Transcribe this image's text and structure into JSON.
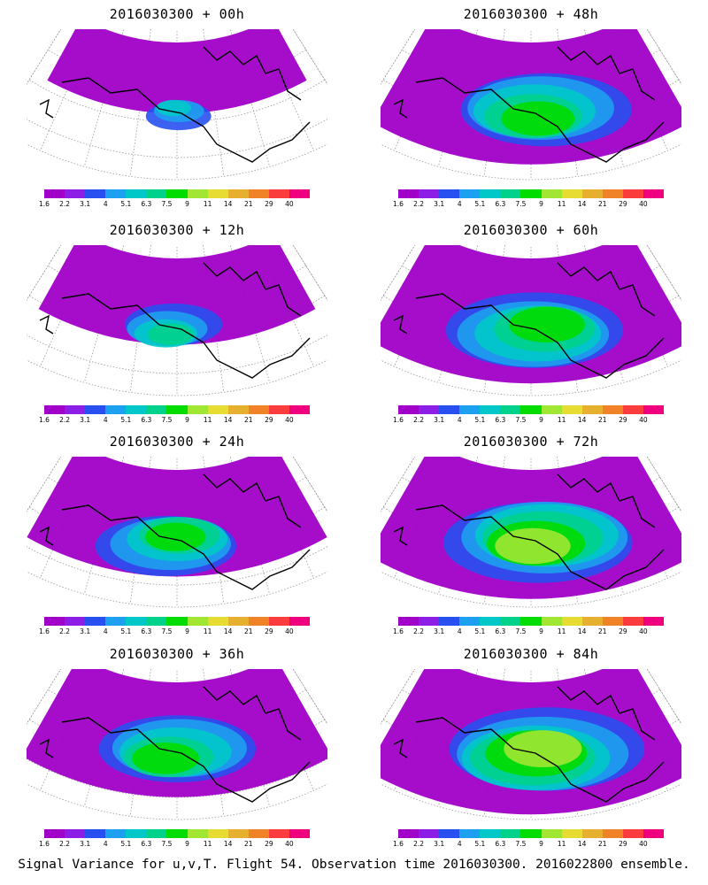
{
  "panels": [
    {
      "title": "2016030300 + 00h",
      "intensity": 0.35,
      "coverage": 0.35
    },
    {
      "title": "2016030300 + 48h",
      "intensity": 0.55,
      "coverage": 0.85
    },
    {
      "title": "2016030300 + 12h",
      "intensity": 0.45,
      "coverage": 0.5
    },
    {
      "title": "2016030300 + 60h",
      "intensity": 0.6,
      "coverage": 0.88
    },
    {
      "title": "2016030300 + 24h",
      "intensity": 0.5,
      "coverage": 0.7
    },
    {
      "title": "2016030300 + 72h",
      "intensity": 0.65,
      "coverage": 0.92
    },
    {
      "title": "2016030300 + 36h",
      "intensity": 0.55,
      "coverage": 0.78
    },
    {
      "title": "2016030300 + 84h",
      "intensity": 0.7,
      "coverage": 0.95
    }
  ],
  "colorbar": {
    "labels": [
      "1.6",
      "2.2",
      "3.1",
      "4",
      "5.1",
      "6.3",
      "7.5",
      "9",
      "11",
      "14",
      "21",
      "29",
      "40"
    ],
    "colors": [
      "#a000c8",
      "#8c1ee6",
      "#2850f0",
      "#1ea0f0",
      "#00c8c8",
      "#00d28c",
      "#00dc00",
      "#a0e632",
      "#e6dc32",
      "#e6af2d",
      "#f08228",
      "#fa3c3c",
      "#f0007f"
    ]
  },
  "footer": "Signal Variance for u,v,T. Flight 54. Observation time 2016030300. 2016022800 ensemble."
}
